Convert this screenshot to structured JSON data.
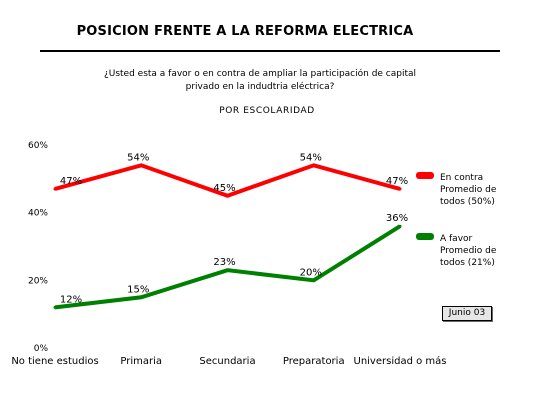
{
  "header": {
    "title": "POSICION FRENTE A LA REFORMA ELECTRICA",
    "question_line1": "¿Usted esta a favor o en contra de ampliar la participación de capital",
    "question_line2": "privado  en la indudtria eléctrica?",
    "subtitle": "POR ESCOLARIDAD"
  },
  "badge": "Junio 03",
  "chart_data": {
    "type": "line",
    "categories": [
      "No tiene estudios",
      "Primaria",
      "Secundaria",
      "Preparatoria",
      "Universidad o más"
    ],
    "series": [
      {
        "name": "En contra",
        "legend": [
          "En contra",
          "Promedio de",
          "todos (50%)"
        ],
        "values": [
          47,
          54,
          45,
          54,
          47
        ],
        "labels": [
          "47%",
          "54%",
          "45%",
          "54%",
          "47%"
        ],
        "color": "#ff0000"
      },
      {
        "name": "A favor",
        "legend": [
          "A favor",
          "Promedio de",
          "todos (21%)"
        ],
        "values": [
          12,
          15,
          23,
          20,
          36
        ],
        "labels": [
          "12%",
          "15%",
          "23%",
          "20%",
          "36%"
        ],
        "color": "#008000"
      }
    ],
    "yticks": [
      0,
      20,
      40,
      60
    ],
    "ytick_labels": [
      "0%",
      "20%",
      "40%",
      "60%"
    ],
    "ylim": [
      0,
      60
    ],
    "grid": false,
    "legend_position": "right"
  }
}
